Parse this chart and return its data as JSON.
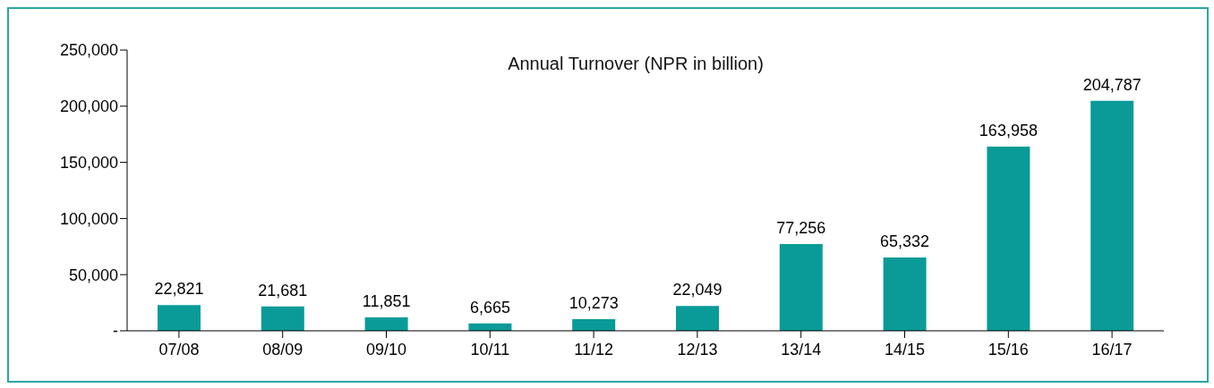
{
  "chart_data": {
    "type": "bar",
    "title": "Annual Turnover (NPR in billion)",
    "categories": [
      "07/08",
      "08/09",
      "09/10",
      "10/11",
      "11/12",
      "12/13",
      "13/14",
      "14/15",
      "15/16",
      "16/17"
    ],
    "values": [
      22821,
      21681,
      11851,
      6665,
      10273,
      22049,
      77256,
      65332,
      163958,
      204787
    ],
    "value_labels": [
      "22,821",
      "21,681",
      "11,851",
      "6,665",
      "10,273",
      "22,049",
      "77,256",
      "65,332",
      "163,958",
      "204,787"
    ],
    "color": "#0a9b98",
    "ylim": [
      0,
      250000
    ],
    "yticks": [
      {
        "value": 0,
        "label": "-"
      },
      {
        "value": 50000,
        "label": "50,000"
      },
      {
        "value": 100000,
        "label": "100,000"
      },
      {
        "value": 150000,
        "label": "150,000"
      },
      {
        "value": 200000,
        "label": "200,000"
      },
      {
        "value": 250000,
        "label": "250,000"
      }
    ],
    "grid": false,
    "legend": false
  }
}
